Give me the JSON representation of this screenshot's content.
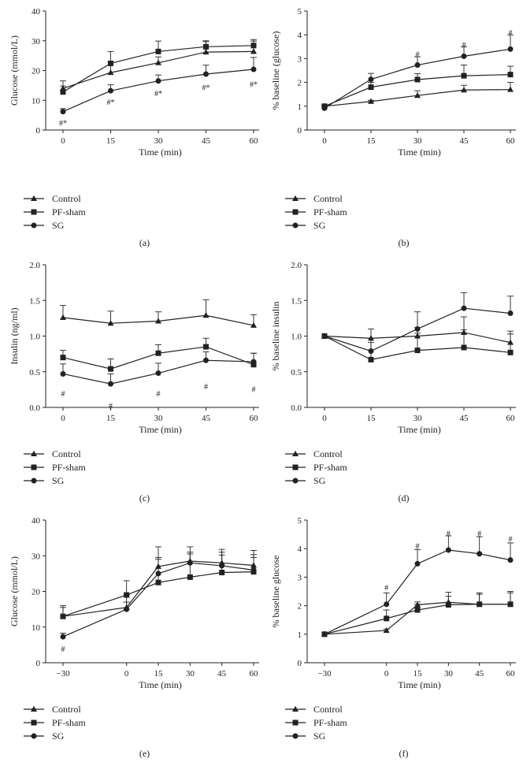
{
  "chart_data": [
    {
      "panel": "(a)",
      "type": "line",
      "xlabel": "Time (min)",
      "ylabel": "Glucose (mmol/L)",
      "x": [
        0,
        15,
        30,
        45,
        60
      ],
      "xlim": [
        0,
        60
      ],
      "ylim": [
        0,
        40
      ],
      "xticks": [
        "0",
        "15",
        "30",
        "45",
        "60"
      ],
      "yticks": [
        "0",
        "10",
        "20",
        "30",
        "40"
      ],
      "series": [
        {
          "name": "Control",
          "marker": "triangle",
          "values": [
            14,
            19.3,
            22.6,
            26.2,
            26.4
          ],
          "errors": [
            2.5,
            3.5,
            2,
            3.5,
            3.5
          ]
        },
        {
          "name": "PF-sham",
          "marker": "square",
          "values": [
            12.8,
            22.4,
            26.4,
            28,
            28.4
          ],
          "errors": [
            2,
            4,
            3.5,
            2,
            2
          ]
        },
        {
          "name": "SG",
          "marker": "circle",
          "values": [
            6.2,
            13.2,
            16.5,
            18.8,
            20.4
          ],
          "errors": [
            1,
            2,
            2,
            3,
            4
          ]
        }
      ],
      "annotations": [
        {
          "x": 0,
          "y": 2.5,
          "text": "#*"
        },
        {
          "x": 15,
          "y": 9.5,
          "text": "#*"
        },
        {
          "x": 30,
          "y": 12.5,
          "text": "#*"
        },
        {
          "x": 45,
          "y": 14.5,
          "text": "#*"
        },
        {
          "x": 60,
          "y": 15.5,
          "text": "#*"
        }
      ]
    },
    {
      "panel": "(b)",
      "type": "line",
      "xlabel": "Time (min)",
      "ylabel": "% baseline (glucose)",
      "x": [
        0,
        15,
        30,
        45,
        60
      ],
      "xlim": [
        0,
        60
      ],
      "ylim": [
        0,
        5
      ],
      "xticks": [
        "0",
        "15",
        "30",
        "45",
        "60"
      ],
      "yticks": [
        "0",
        "1",
        "2",
        "3",
        "4",
        "5"
      ],
      "series": [
        {
          "name": "Control",
          "marker": "triangle",
          "values": [
            1,
            1.2,
            1.45,
            1.68,
            1.7
          ],
          "errors": [
            0.05,
            0.05,
            0.2,
            0.2,
            0.3
          ]
        },
        {
          "name": "PF-sham",
          "marker": "square",
          "values": [
            1,
            1.8,
            2.12,
            2.28,
            2.33
          ],
          "errors": [
            0.05,
            0.2,
            0.25,
            0.45,
            0.35
          ]
        },
        {
          "name": "SG",
          "marker": "circle",
          "values": [
            0.92,
            2.13,
            2.73,
            3.1,
            3.4
          ],
          "errors": [
            0.05,
            0.25,
            0.35,
            0.4,
            0.6
          ]
        }
      ],
      "annotations": [
        {
          "x": 30,
          "y": 3.2,
          "text": "#"
        },
        {
          "x": 45,
          "y": 3.6,
          "text": "#"
        },
        {
          "x": 60,
          "y": 4.1,
          "text": "#"
        }
      ]
    },
    {
      "panel": "(c)",
      "type": "line",
      "xlabel": "Time (min)",
      "ylabel": "Insulin (ng/ml)",
      "x": [
        0,
        15,
        30,
        45,
        60
      ],
      "xlim": [
        0,
        60
      ],
      "ylim": [
        0,
        2.0
      ],
      "xticks": [
        "0",
        "15",
        "30",
        "45",
        "60"
      ],
      "yticks": [
        "0.0",
        "0.5",
        "1.0",
        "1.5",
        "2.0"
      ],
      "series": [
        {
          "name": "Control",
          "marker": "triangle",
          "values": [
            1.26,
            1.18,
            1.21,
            1.29,
            1.15
          ],
          "errors": [
            0.17,
            0.17,
            0.13,
            0.22,
            0.15
          ]
        },
        {
          "name": "PF-sham",
          "marker": "square",
          "values": [
            0.7,
            0.54,
            0.76,
            0.85,
            0.6
          ],
          "errors": [
            0.1,
            0.14,
            0.12,
            0.12,
            0.16
          ]
        },
        {
          "name": "SG",
          "marker": "circle",
          "values": [
            0.47,
            0.33,
            0.48,
            0.66,
            0.64
          ],
          "errors": [
            0.14,
            0.14,
            0.14,
            0.12,
            0.12
          ]
        }
      ],
      "annotations": [
        {
          "x": 0,
          "y": 0.2,
          "text": "#"
        },
        {
          "x": 15,
          "y": 0.03,
          "text": "#"
        },
        {
          "x": 30,
          "y": 0.2,
          "text": "#"
        },
        {
          "x": 45,
          "y": 0.3,
          "text": "#"
        },
        {
          "x": 60,
          "y": 0.26,
          "text": "#"
        }
      ]
    },
    {
      "panel": "(d)",
      "type": "line",
      "xlabel": "Time (min)",
      "ylabel": "% baseline insulin",
      "x": [
        0,
        15,
        30,
        45,
        60
      ],
      "xlim": [
        0,
        60
      ],
      "ylim": [
        0,
        2.0
      ],
      "xticks": [
        "0",
        "15",
        "30",
        "45",
        "60"
      ],
      "yticks": [
        "0.0",
        "0.5",
        "1.0",
        "1.5",
        "2.0"
      ],
      "series": [
        {
          "name": "Control",
          "marker": "triangle",
          "values": [
            1,
            0.97,
            1,
            1.05,
            0.91
          ],
          "errors": [
            0.02,
            0.13,
            0.12,
            0.22,
            0.16
          ]
        },
        {
          "name": "PF-sham",
          "marker": "square",
          "values": [
            1,
            0.67,
            0.8,
            0.84,
            0.77
          ],
          "errors": [
            0.02,
            0.24,
            0.24,
            0.25,
            0.26
          ]
        },
        {
          "name": "SG",
          "marker": "circle",
          "values": [
            1,
            0.79,
            1.1,
            1.39,
            1.32
          ],
          "errors": [
            0.02,
            0.18,
            0.24,
            0.22,
            0.24
          ]
        }
      ],
      "annotations": []
    },
    {
      "panel": "(e)",
      "type": "line",
      "xlabel": "Time (min)",
      "ylabel": "Glucose (mmol/L)",
      "x": [
        -30,
        0,
        15,
        30,
        45,
        60
      ],
      "xlim": [
        -30,
        60
      ],
      "ylim": [
        0,
        40
      ],
      "xticks": [
        "-30",
        "0",
        "15",
        "30",
        "45",
        "60"
      ],
      "yticks": [
        "0",
        "10",
        "20",
        "30",
        "40"
      ],
      "series": [
        {
          "name": "Control",
          "marker": "triangle",
          "values": [
            13,
            15.5,
            27,
            28.5,
            28,
            27.3
          ],
          "errors": [
            2.5,
            3.5,
            5.5,
            4,
            3,
            3
          ]
        },
        {
          "name": "PF-sham",
          "marker": "square",
          "values": [
            13,
            19,
            22.5,
            24,
            25.3,
            25.5
          ],
          "errors": [
            3,
            4,
            7,
            6.5,
            6.5,
            6
          ]
        },
        {
          "name": "SG",
          "marker": "circle",
          "values": [
            7.3,
            15,
            25,
            28,
            27.2,
            26
          ],
          "errors": [
            1,
            2,
            4,
            3,
            3,
            3.5
          ]
        }
      ],
      "annotations": [
        {
          "x": -30,
          "y": 4,
          "text": "#"
        }
      ]
    },
    {
      "panel": "(f)",
      "type": "line",
      "xlabel": "Time (min)",
      "ylabel": "% baseline glucose",
      "x": [
        -30,
        0,
        15,
        30,
        45,
        60
      ],
      "xlim": [
        -30,
        60
      ],
      "ylim": [
        0,
        5
      ],
      "xticks": [
        "-30",
        "0",
        "15",
        "30",
        "45",
        "60"
      ],
      "yticks": [
        "0",
        "1",
        "2",
        "3",
        "4",
        "5"
      ],
      "series": [
        {
          "name": "Control",
          "marker": "triangle",
          "values": [
            1,
            1.13,
            2.03,
            2.12,
            2.05,
            2.05
          ],
          "errors": [
            0.02,
            0.05,
            0.1,
            0.35,
            0.4,
            0.45
          ]
        },
        {
          "name": "PF-sham",
          "marker": "square",
          "values": [
            1,
            1.55,
            1.85,
            2.03,
            2.05,
            2.05
          ],
          "errors": [
            0.02,
            0.3,
            0.2,
            0.3,
            0.35,
            0.4
          ]
        },
        {
          "name": "SG",
          "marker": "circle",
          "values": [
            1,
            2.05,
            3.47,
            3.95,
            3.82,
            3.6
          ],
          "errors": [
            0.02,
            0.4,
            0.5,
            0.5,
            0.6,
            0.6
          ]
        }
      ],
      "annotations": [
        {
          "x": 0,
          "y": 2.65,
          "text": "#"
        },
        {
          "x": 15,
          "y": 4.1,
          "text": "#"
        },
        {
          "x": 30,
          "y": 4.55,
          "text": "#"
        },
        {
          "x": 45,
          "y": 4.55,
          "text": "#"
        },
        {
          "x": 60,
          "y": 4.35,
          "text": "#"
        }
      ]
    }
  ]
}
